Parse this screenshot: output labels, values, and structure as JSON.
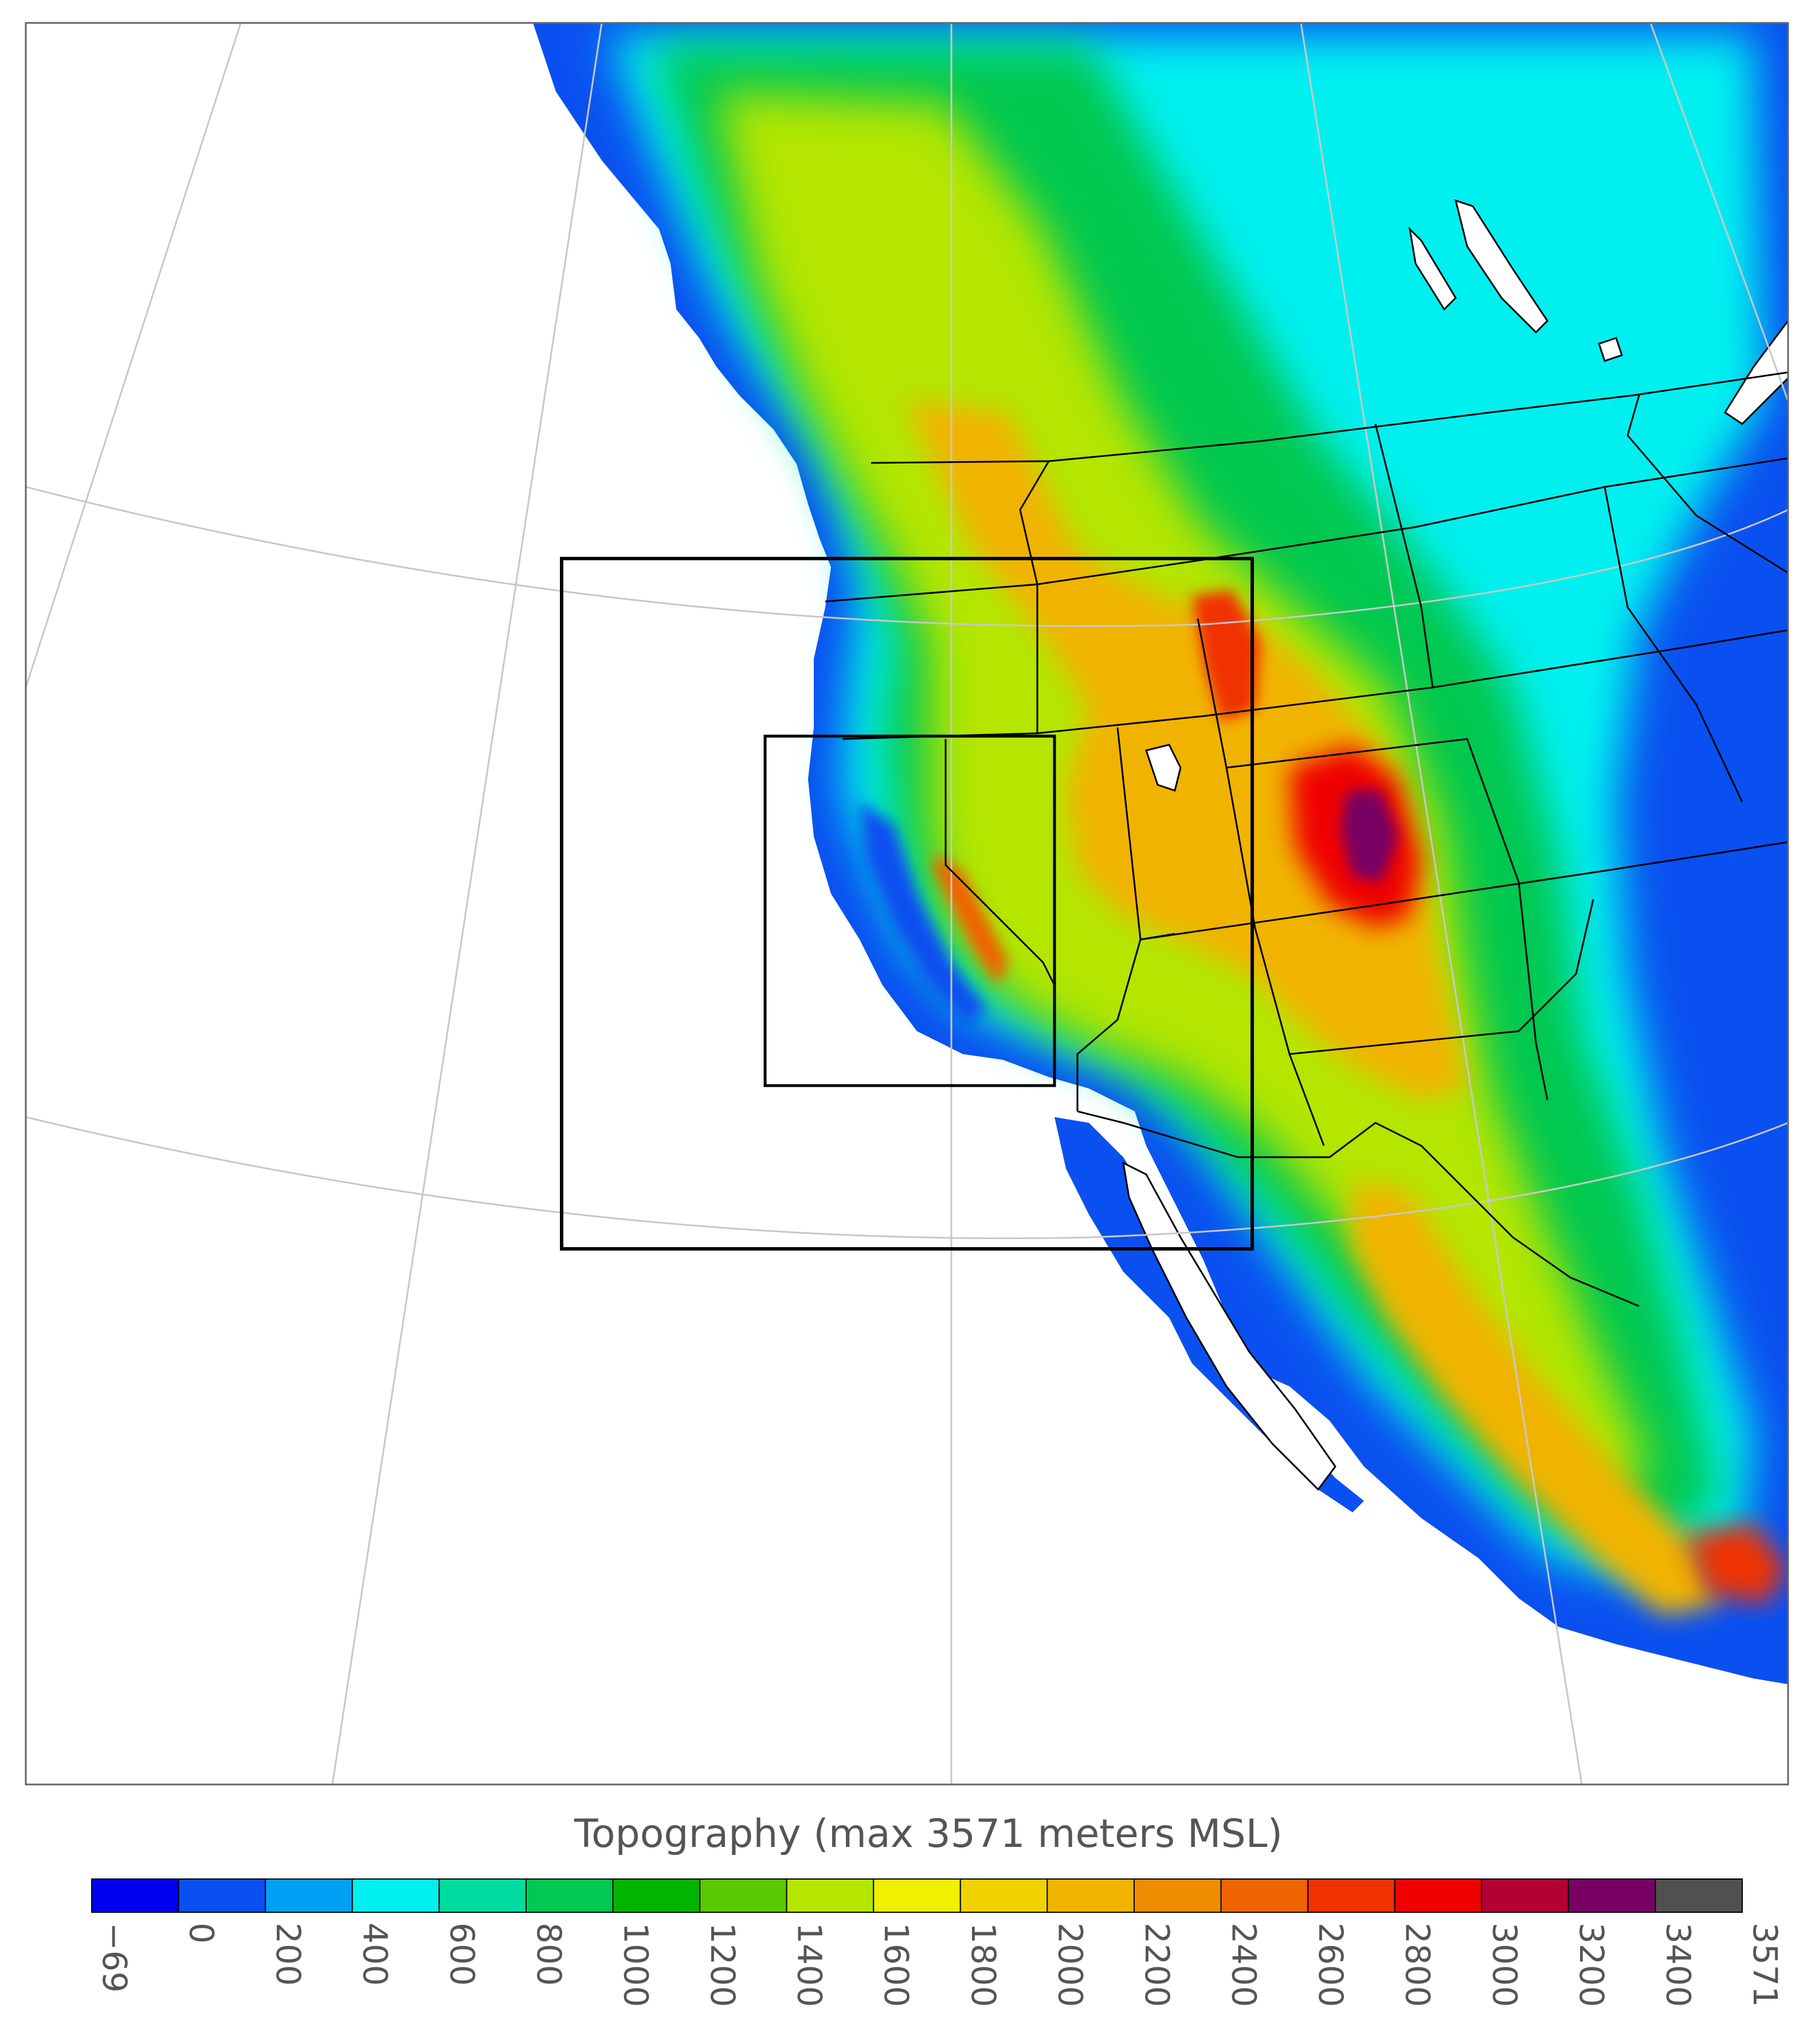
{
  "title": "Topography (max 3571 meters MSL)",
  "colorbar": {
    "labels": [
      "−69",
      "0",
      "200",
      "400",
      "600",
      "800",
      "1000",
      "1200",
      "1400",
      "1600",
      "1800",
      "2000",
      "2200",
      "2400",
      "2600",
      "2800",
      "3000",
      "3200",
      "3400",
      "3571"
    ],
    "colors": [
      "#0000f0",
      "#0a50f0",
      "#00a0f5",
      "#00f0f0",
      "#00dca0",
      "#00c850",
      "#00b400",
      "#5ac800",
      "#b4e600",
      "#f0f000",
      "#f0d200",
      "#f0b400",
      "#f08c00",
      "#f06400",
      "#f03200",
      "#f00000",
      "#b40032",
      "#780064",
      "#505050"
    ]
  },
  "legend_colors": {
    "ocean": "#ffffff",
    "lakes": "#ffffff",
    "grid": "#c8c8c8",
    "boundaries": "#000000"
  }
}
